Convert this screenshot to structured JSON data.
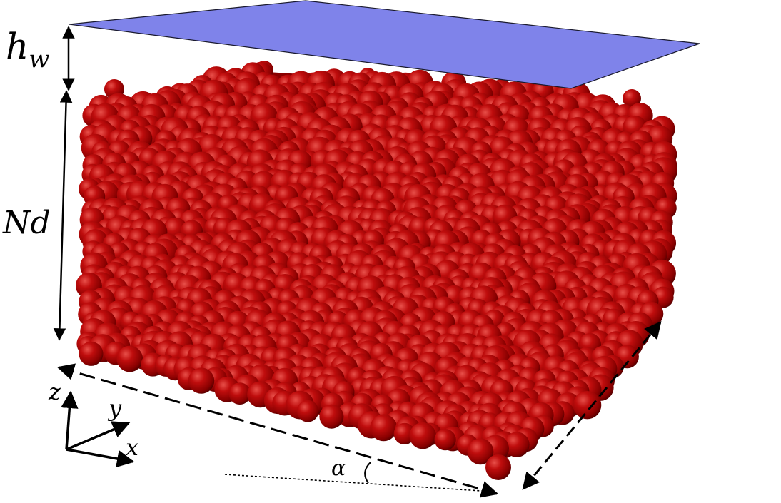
{
  "labels": {
    "wall_gap": "h",
    "wall_gap_sub": "w",
    "bed_height": "Nd",
    "axis_z": "z",
    "axis_y": "y",
    "axis_x": "x",
    "angle": "α"
  },
  "colors": {
    "wall_fill": "#7f83ea",
    "wall_stroke": "#1a1a2e",
    "particle": "#b00000",
    "particle_highlight": "#e04a4a",
    "particle_shadow": "#4a0000",
    "arrow": "#000000"
  },
  "icons": {
    "particles": "sphere-packing",
    "wall": "plane-wall"
  }
}
